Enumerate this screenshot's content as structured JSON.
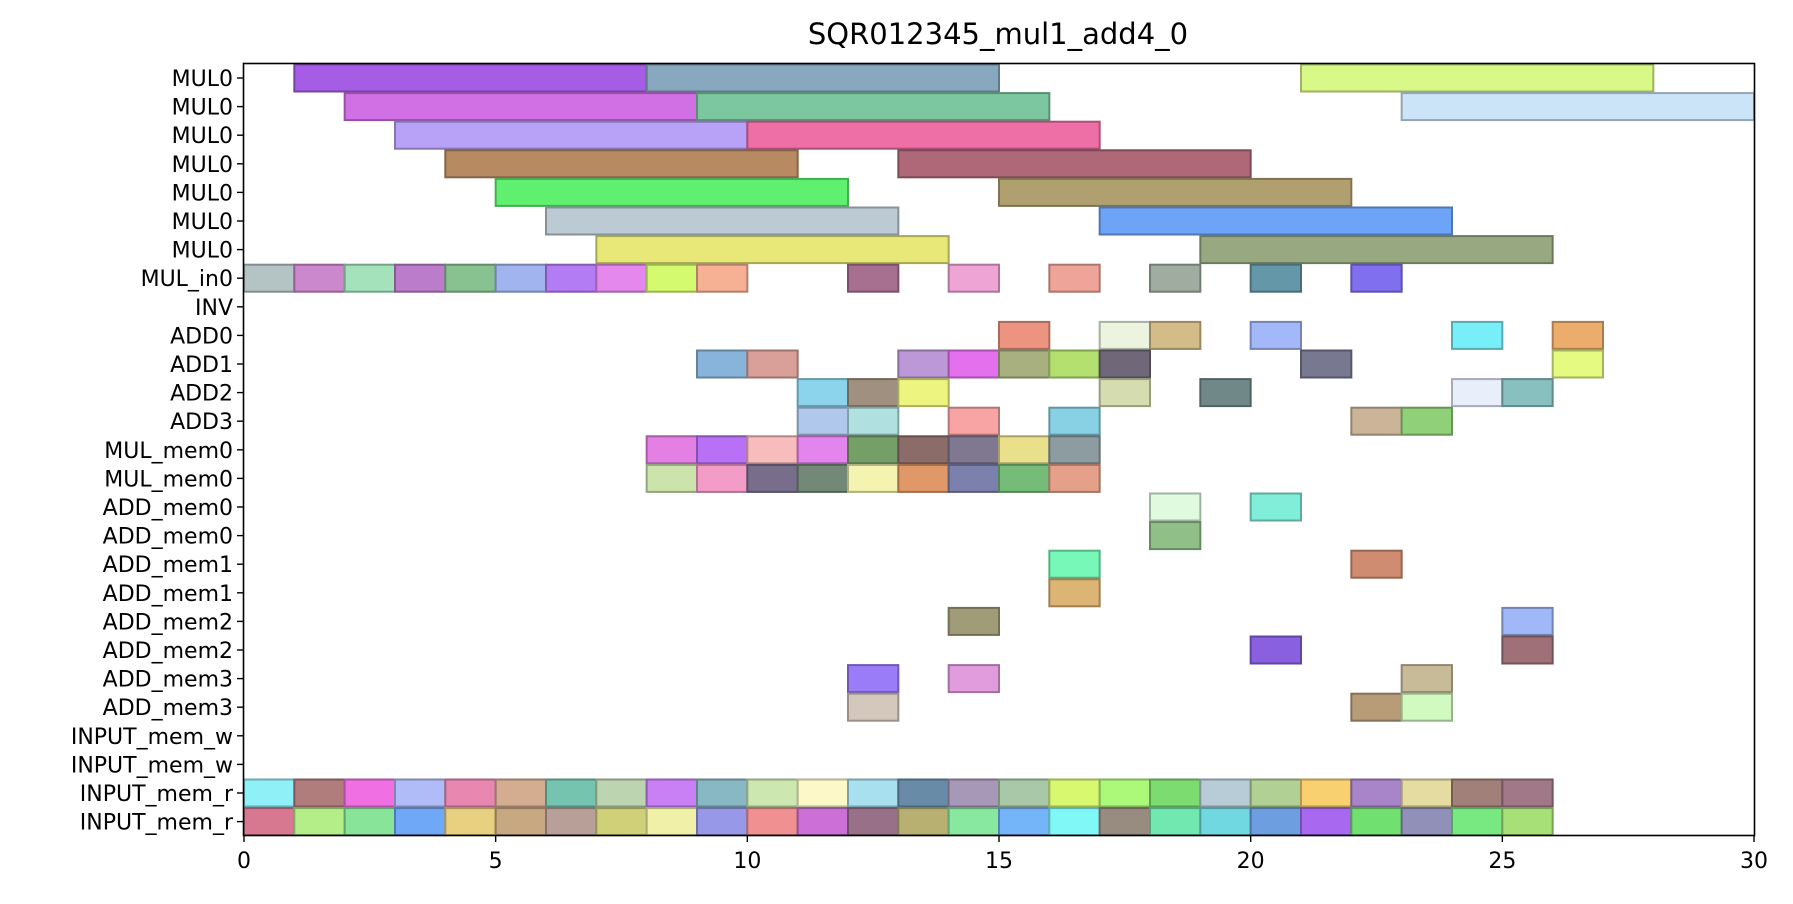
{
  "chart_data": {
    "type": "gantt",
    "title": "SQR012345_mul1_add4_0",
    "xlabel": "",
    "ylabel": "",
    "xlim": [
      0,
      30
    ],
    "xticks": [
      0,
      5,
      10,
      15,
      20,
      25,
      30
    ],
    "grid": false,
    "rows": [
      "MUL0",
      "MUL0",
      "MUL0",
      "MUL0",
      "MUL0",
      "MUL0",
      "MUL0",
      "MUL_in0",
      "INV",
      "ADD0",
      "ADD1",
      "ADD2",
      "ADD3",
      "MUL_mem0",
      "MUL_mem0",
      "ADD_mem0",
      "ADD_mem0",
      "ADD_mem1",
      "ADD_mem1",
      "ADD_mem2",
      "ADD_mem2",
      "ADD_mem3",
      "ADD_mem3",
      "INPUT_mem_w",
      "INPUT_mem_w",
      "INPUT_mem_r",
      "INPUT_mem_r"
    ],
    "tasks": [
      {
        "row": 0,
        "start": 1,
        "end": 8,
        "color": "#a55de6"
      },
      {
        "row": 0,
        "start": 8,
        "end": 15,
        "color": "#88a8c0"
      },
      {
        "row": 0,
        "start": 21,
        "end": 28,
        "color": "#d8f888"
      },
      {
        "row": 1,
        "start": 2,
        "end": 9,
        "color": "#d070e4"
      },
      {
        "row": 1,
        "start": 9,
        "end": 16,
        "color": "#7cc6a0"
      },
      {
        "row": 1,
        "start": 23,
        "end": 30,
        "color": "#cce4f8"
      },
      {
        "row": 2,
        "start": 3,
        "end": 10,
        "color": "#b8a2f8"
      },
      {
        "row": 2,
        "start": 10,
        "end": 17,
        "color": "#ee6ea6"
      },
      {
        "row": 3,
        "start": 4,
        "end": 11,
        "color": "#b88a62"
      },
      {
        "row": 3,
        "start": 13,
        "end": 20,
        "color": "#ae6878"
      },
      {
        "row": 4,
        "start": 5,
        "end": 12,
        "color": "#60f070"
      },
      {
        "row": 4,
        "start": 15,
        "end": 22,
        "color": "#b0a070"
      },
      {
        "row": 5,
        "start": 6,
        "end": 13,
        "color": "#bccad4"
      },
      {
        "row": 5,
        "start": 17,
        "end": 24,
        "color": "#6ea4f8"
      },
      {
        "row": 6,
        "start": 7,
        "end": 14,
        "color": "#e8e878"
      },
      {
        "row": 6,
        "start": 19,
        "end": 26,
        "color": "#98a880"
      },
      {
        "row": 7,
        "start": 0,
        "end": 1,
        "color": "#b4c4c4"
      },
      {
        "row": 7,
        "start": 1,
        "end": 2,
        "color": "#cc88cc"
      },
      {
        "row": 7,
        "start": 2,
        "end": 3,
        "color": "#a4e2bc"
      },
      {
        "row": 7,
        "start": 3,
        "end": 4,
        "color": "#bc7ccc"
      },
      {
        "row": 7,
        "start": 4,
        "end": 5,
        "color": "#88c290"
      },
      {
        "row": 7,
        "start": 5,
        "end": 6,
        "color": "#a2b4f0"
      },
      {
        "row": 7,
        "start": 6,
        "end": 7,
        "color": "#b47cf4"
      },
      {
        "row": 7,
        "start": 7,
        "end": 8,
        "color": "#e488ee"
      },
      {
        "row": 7,
        "start": 8,
        "end": 9,
        "color": "#d4fa70"
      },
      {
        "row": 7,
        "start": 9,
        "end": 10,
        "color": "#f6b094"
      },
      {
        "row": 7,
        "start": 12,
        "end": 13,
        "color": "#a87090"
      },
      {
        "row": 7,
        "start": 14,
        "end": 15,
        "color": "#eea4d4"
      },
      {
        "row": 7,
        "start": 16,
        "end": 17,
        "color": "#eea498"
      },
      {
        "row": 7,
        "start": 18,
        "end": 19,
        "color": "#a0aca0"
      },
      {
        "row": 7,
        "start": 20,
        "end": 21,
        "color": "#6498a8"
      },
      {
        "row": 7,
        "start": 22,
        "end": 23,
        "color": "#8070f0"
      },
      {
        "row": 9,
        "start": 15,
        "end": 16,
        "color": "#ec9480"
      },
      {
        "row": 9,
        "start": 17,
        "end": 18,
        "color": "#ecf4e0"
      },
      {
        "row": 9,
        "start": 18,
        "end": 19,
        "color": "#d4bc88"
      },
      {
        "row": 9,
        "start": 20,
        "end": 21,
        "color": "#a2b8f8"
      },
      {
        "row": 9,
        "start": 24,
        "end": 25,
        "color": "#78eef8"
      },
      {
        "row": 9,
        "start": 26,
        "end": 27,
        "color": "#ecac6c"
      },
      {
        "row": 10,
        "start": 9,
        "end": 10,
        "color": "#88b4dc"
      },
      {
        "row": 10,
        "start": 10,
        "end": 11,
        "color": "#d8a098"
      },
      {
        "row": 10,
        "start": 13,
        "end": 14,
        "color": "#bc98d8"
      },
      {
        "row": 10,
        "start": 14,
        "end": 15,
        "color": "#e470ee"
      },
      {
        "row": 10,
        "start": 15,
        "end": 16,
        "color": "#a8b080"
      },
      {
        "row": 10,
        "start": 16,
        "end": 17,
        "color": "#b4e070"
      },
      {
        "row": 10,
        "start": 17,
        "end": 18,
        "color": "#706878"
      },
      {
        "row": 10,
        "start": 21,
        "end": 22,
        "color": "#787890"
      },
      {
        "row": 10,
        "start": 26,
        "end": 27,
        "color": "#e4fa80"
      },
      {
        "row": 11,
        "start": 11,
        "end": 12,
        "color": "#8cd4ec"
      },
      {
        "row": 11,
        "start": 12,
        "end": 13,
        "color": "#a09080"
      },
      {
        "row": 11,
        "start": 13,
        "end": 14,
        "color": "#eef480"
      },
      {
        "row": 11,
        "start": 17,
        "end": 18,
        "color": "#d4dcb0"
      },
      {
        "row": 11,
        "start": 19,
        "end": 20,
        "color": "#708888"
      },
      {
        "row": 11,
        "start": 24,
        "end": 25,
        "color": "#e8eefa"
      },
      {
        "row": 11,
        "start": 25,
        "end": 26,
        "color": "#88c0c0"
      },
      {
        "row": 12,
        "start": 11,
        "end": 12,
        "color": "#b0c8ec"
      },
      {
        "row": 12,
        "start": 12,
        "end": 13,
        "color": "#b0e0e0"
      },
      {
        "row": 12,
        "start": 14,
        "end": 15,
        "color": "#f8a4a4"
      },
      {
        "row": 12,
        "start": 16,
        "end": 17,
        "color": "#88d0e4"
      },
      {
        "row": 12,
        "start": 22,
        "end": 23,
        "color": "#ccb498"
      },
      {
        "row": 12,
        "start": 23,
        "end": 24,
        "color": "#90d078"
      },
      {
        "row": 13,
        "start": 8,
        "end": 9,
        "color": "#e480e4"
      },
      {
        "row": 13,
        "start": 9,
        "end": 10,
        "color": "#b870f6"
      },
      {
        "row": 13,
        "start": 10,
        "end": 11,
        "color": "#f8bcbc"
      },
      {
        "row": 13,
        "start": 11,
        "end": 12,
        "color": "#e484ee"
      },
      {
        "row": 13,
        "start": 12,
        "end": 13,
        "color": "#74a068"
      },
      {
        "row": 13,
        "start": 13,
        "end": 14,
        "color": "#8c6c68"
      },
      {
        "row": 13,
        "start": 14,
        "end": 15,
        "color": "#807890"
      },
      {
        "row": 13,
        "start": 15,
        "end": 16,
        "color": "#eae08c"
      },
      {
        "row": 13,
        "start": 16,
        "end": 17,
        "color": "#8c9ca0"
      },
      {
        "row": 14,
        "start": 8,
        "end": 9,
        "color": "#cce4ac"
      },
      {
        "row": 14,
        "start": 9,
        "end": 10,
        "color": "#f49cc8"
      },
      {
        "row": 14,
        "start": 10,
        "end": 11,
        "color": "#786e8c"
      },
      {
        "row": 14,
        "start": 11,
        "end": 12,
        "color": "#748878"
      },
      {
        "row": 14,
        "start": 12,
        "end": 13,
        "color": "#f4f4b0"
      },
      {
        "row": 14,
        "start": 13,
        "end": 14,
        "color": "#e09868"
      },
      {
        "row": 14,
        "start": 14,
        "end": 15,
        "color": "#7c80ac"
      },
      {
        "row": 14,
        "start": 15,
        "end": 16,
        "color": "#74bc78"
      },
      {
        "row": 14,
        "start": 16,
        "end": 17,
        "color": "#e4a088"
      },
      {
        "row": 15,
        "start": 18,
        "end": 19,
        "color": "#e0fae0"
      },
      {
        "row": 15,
        "start": 20,
        "end": 21,
        "color": "#80eed8"
      },
      {
        "row": 16,
        "start": 18,
        "end": 19,
        "color": "#90c088"
      },
      {
        "row": 17,
        "start": 16,
        "end": 17,
        "color": "#78f8b8"
      },
      {
        "row": 17,
        "start": 22,
        "end": 23,
        "color": "#d08c70"
      },
      {
        "row": 18,
        "start": 16,
        "end": 17,
        "color": "#dcb474"
      },
      {
        "row": 19,
        "start": 14,
        "end": 15,
        "color": "#a09c78"
      },
      {
        "row": 19,
        "start": 25,
        "end": 26,
        "color": "#a0b8f8"
      },
      {
        "row": 20,
        "start": 20,
        "end": 21,
        "color": "#8860e0"
      },
      {
        "row": 20,
        "start": 25,
        "end": 26,
        "color": "#a07078"
      },
      {
        "row": 21,
        "start": 12,
        "end": 13,
        "color": "#9a7cf8"
      },
      {
        "row": 21,
        "start": 14,
        "end": 15,
        "color": "#e09cdc"
      },
      {
        "row": 21,
        "start": 23,
        "end": 24,
        "color": "#c8bc98"
      },
      {
        "row": 22,
        "start": 12,
        "end": 13,
        "color": "#d4c8bc"
      },
      {
        "row": 22,
        "start": 22,
        "end": 23,
        "color": "#b89c78"
      },
      {
        "row": 22,
        "start": 23,
        "end": 24,
        "color": "#d0fac0"
      },
      {
        "row": 25,
        "start": 0,
        "end": 1,
        "color": "#90f0f8"
      },
      {
        "row": 25,
        "start": 1,
        "end": 2,
        "color": "#b07c7c"
      },
      {
        "row": 25,
        "start": 2,
        "end": 3,
        "color": "#f070e4"
      },
      {
        "row": 25,
        "start": 3,
        "end": 4,
        "color": "#b0bcf8"
      },
      {
        "row": 25,
        "start": 4,
        "end": 5,
        "color": "#e888b0"
      },
      {
        "row": 25,
        "start": 5,
        "end": 6,
        "color": "#d4ac90"
      },
      {
        "row": 25,
        "start": 6,
        "end": 7,
        "color": "#74c4b0"
      },
      {
        "row": 25,
        "start": 7,
        "end": 8,
        "color": "#bcd4b0"
      },
      {
        "row": 25,
        "start": 8,
        "end": 9,
        "color": "#c880f4"
      },
      {
        "row": 25,
        "start": 9,
        "end": 10,
        "color": "#88b8c4"
      },
      {
        "row": 25,
        "start": 10,
        "end": 11,
        "color": "#cce8b0"
      },
      {
        "row": 25,
        "start": 11,
        "end": 12,
        "color": "#fcf8c8"
      },
      {
        "row": 25,
        "start": 12,
        "end": 13,
        "color": "#a8e0f0"
      },
      {
        "row": 25,
        "start": 13,
        "end": 14,
        "color": "#688ca8"
      },
      {
        "row": 25,
        "start": 14,
        "end": 15,
        "color": "#a898b8"
      },
      {
        "row": 25,
        "start": 15,
        "end": 16,
        "color": "#a8c8a8"
      },
      {
        "row": 25,
        "start": 16,
        "end": 17,
        "color": "#d8f870"
      },
      {
        "row": 25,
        "start": 17,
        "end": 18,
        "color": "#acf878"
      },
      {
        "row": 25,
        "start": 18,
        "end": 19,
        "color": "#7cdc70"
      },
      {
        "row": 25,
        "start": 19,
        "end": 20,
        "color": "#b8ccd8"
      },
      {
        "row": 25,
        "start": 20,
        "end": 21,
        "color": "#b0d094"
      },
      {
        "row": 25,
        "start": 21,
        "end": 22,
        "color": "#f8d070"
      },
      {
        "row": 25,
        "start": 22,
        "end": 23,
        "color": "#a884c8"
      },
      {
        "row": 25,
        "start": 23,
        "end": 24,
        "color": "#e4dca0"
      },
      {
        "row": 25,
        "start": 24,
        "end": 25,
        "color": "#a08078"
      },
      {
        "row": 25,
        "start": 25,
        "end": 26,
        "color": "#a07888"
      },
      {
        "row": 26,
        "start": 0,
        "end": 1,
        "color": "#d87890"
      },
      {
        "row": 26,
        "start": 1,
        "end": 2,
        "color": "#b4ee88"
      },
      {
        "row": 26,
        "start": 2,
        "end": 3,
        "color": "#88e498"
      },
      {
        "row": 26,
        "start": 3,
        "end": 4,
        "color": "#70a8f8"
      },
      {
        "row": 26,
        "start": 4,
        "end": 5,
        "color": "#e8d080"
      },
      {
        "row": 26,
        "start": 5,
        "end": 6,
        "color": "#c8a880"
      },
      {
        "row": 26,
        "start": 6,
        "end": 7,
        "color": "#b8a098"
      },
      {
        "row": 26,
        "start": 7,
        "end": 8,
        "color": "#d0d078"
      },
      {
        "row": 26,
        "start": 8,
        "end": 9,
        "color": "#f0f0a8"
      },
      {
        "row": 26,
        "start": 9,
        "end": 10,
        "color": "#9898e8"
      },
      {
        "row": 26,
        "start": 10,
        "end": 11,
        "color": "#f09090"
      },
      {
        "row": 26,
        "start": 11,
        "end": 12,
        "color": "#cc70d8"
      },
      {
        "row": 26,
        "start": 12,
        "end": 13,
        "color": "#987088"
      },
      {
        "row": 26,
        "start": 13,
        "end": 14,
        "color": "#b8b070"
      },
      {
        "row": 26,
        "start": 14,
        "end": 15,
        "color": "#88e8a0"
      },
      {
        "row": 26,
        "start": 15,
        "end": 16,
        "color": "#74b4f8"
      },
      {
        "row": 26,
        "start": 16,
        "end": 17,
        "color": "#80f8f8"
      },
      {
        "row": 26,
        "start": 17,
        "end": 18,
        "color": "#988c80"
      },
      {
        "row": 26,
        "start": 18,
        "end": 19,
        "color": "#70e8b0"
      },
      {
        "row": 26,
        "start": 19,
        "end": 20,
        "color": "#70d8e0"
      },
      {
        "row": 26,
        "start": 20,
        "end": 21,
        "color": "#6c9ee0"
      },
      {
        "row": 26,
        "start": 21,
        "end": 22,
        "color": "#a868f0"
      },
      {
        "row": 26,
        "start": 22,
        "end": 23,
        "color": "#70e070"
      },
      {
        "row": 26,
        "start": 23,
        "end": 24,
        "color": "#9090b8"
      },
      {
        "row": 26,
        "start": 24,
        "end": 25,
        "color": "#78e880"
      },
      {
        "row": 26,
        "start": 25,
        "end": 26,
        "color": "#a8e078"
      }
    ]
  }
}
